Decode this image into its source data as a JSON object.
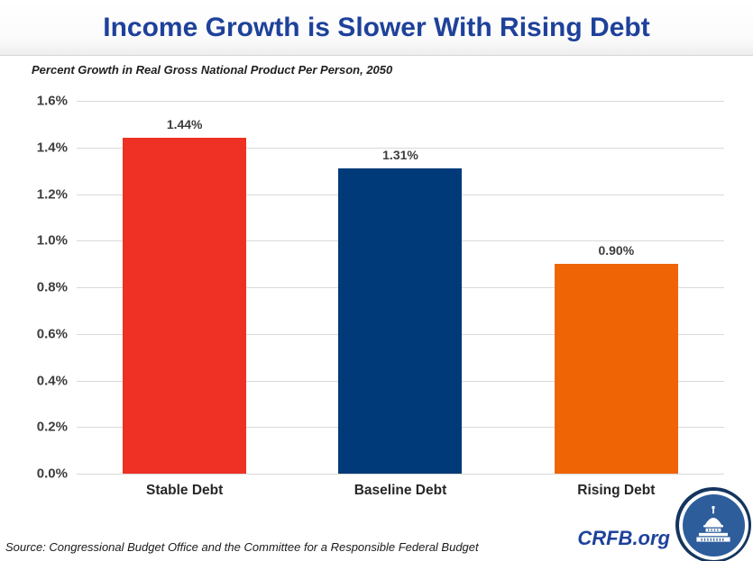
{
  "header": {
    "title": "Income Growth is Slower With Rising Debt"
  },
  "subtitle": "Percent Growth in Real Gross National Product Per Person, 2050",
  "chart_data": {
    "type": "bar",
    "title": "Income Growth is Slower With Rising Debt",
    "subtitle": "Percent Growth in Real Gross National Product Per Person, 2050",
    "categories": [
      "Stable Debt",
      "Baseline Debt",
      "Rising Debt"
    ],
    "values": [
      1.44,
      1.31,
      0.9
    ],
    "value_labels": [
      "1.44%",
      "1.31%",
      "0.90%"
    ],
    "bar_colors": [
      "#ee3124",
      "#003a78",
      "#ef6505"
    ],
    "xlabel": "",
    "ylabel": "",
    "ylim": [
      0,
      1.6
    ],
    "ytick_labels": [
      "0.0%",
      "0.2%",
      "0.4%",
      "0.6%",
      "0.8%",
      "1.0%",
      "1.2%",
      "1.4%",
      "1.6%"
    ],
    "grid": true,
    "legend": false
  },
  "footer": {
    "source": "Source: Congressional Budget Office and the Committee for a Responsible Federal Budget",
    "brand": "CRFB.org"
  },
  "colors": {
    "title_blue": "#1e419b",
    "gridline": "#d9d9d9",
    "bar_red": "#ee3124",
    "bar_navy": "#003a78",
    "bar_orange": "#ef6505",
    "logo_ring": "#14355f",
    "logo_fill": "#2e5d9c"
  },
  "logo": {
    "icon": "capitol-dome-icon"
  }
}
